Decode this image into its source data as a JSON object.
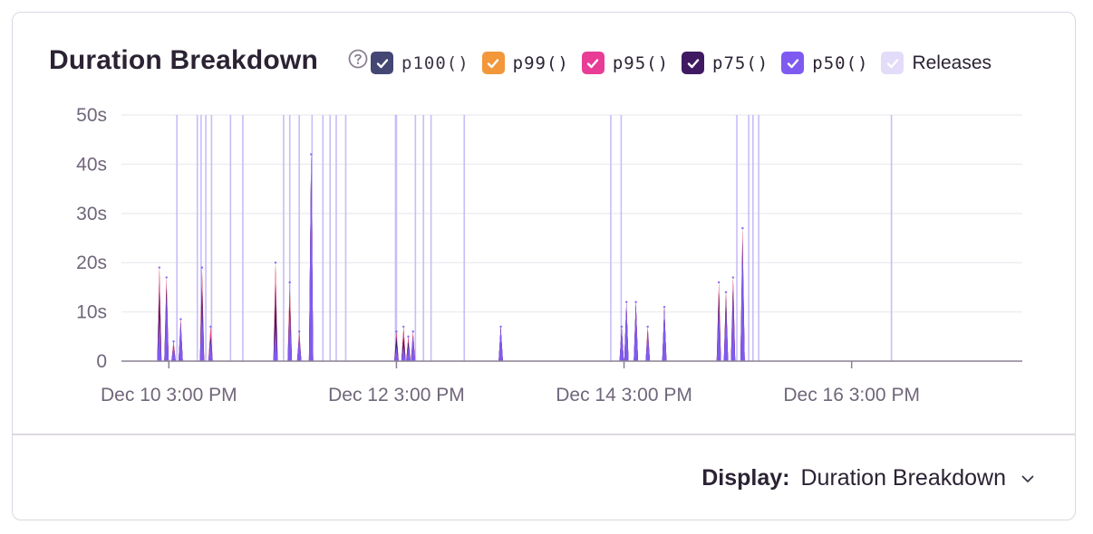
{
  "header": {
    "title": "Duration Breakdown"
  },
  "legend": [
    {
      "label": "p100()",
      "color": "#444674",
      "mono": true
    },
    {
      "label": "p99()",
      "color": "#f2973a",
      "mono": true
    },
    {
      "label": "p95()",
      "color": "#e93c96",
      "mono": true
    },
    {
      "label": "p75()",
      "color": "#3f1a63",
      "mono": true
    },
    {
      "label": "p50()",
      "color": "#7f5af0",
      "mono": true
    },
    {
      "label": "Releases",
      "color": "#e3dcf8",
      "mono": false
    }
  ],
  "footer": {
    "display_label": "Display:",
    "display_value": "Duration Breakdown"
  },
  "chart_data": {
    "type": "area",
    "y_unit": "s",
    "ylim": [
      0,
      50
    ],
    "y_ticks": [
      "0",
      "10s",
      "20s",
      "30s",
      "40s",
      "50s"
    ],
    "x_range_hours": [
      -10,
      180
    ],
    "x_ticks": [
      {
        "label": "Dec 10 3:00 PM",
        "hour": 0
      },
      {
        "label": "Dec 12 3:00 PM",
        "hour": 48
      },
      {
        "label": "Dec 14 3:00 PM",
        "hour": 96
      },
      {
        "label": "Dec 16 3:00 PM",
        "hour": 144
      }
    ],
    "grid": true,
    "legend_position": "top",
    "release_hours": [
      1.7,
      6,
      6.8,
      7.8,
      9,
      13,
      15.6,
      24.2,
      25.5,
      27.5,
      30.2,
      32.5,
      34,
      35.3,
      37.3,
      47.8,
      48,
      52,
      53.7,
      55.3,
      62.3,
      93.2,
      95.4,
      119.8,
      122.3,
      123.2,
      124.4,
      152.4
    ],
    "spikes": [
      {
        "hour": -2.0,
        "p100": 19,
        "p99": 19,
        "p95": 19,
        "p75": 14,
        "p50": 9
      },
      {
        "hour": -0.5,
        "p100": 17,
        "p99": 17,
        "p95": 17,
        "p75": 15,
        "p50": 13
      },
      {
        "hour": 1.0,
        "p100": 4,
        "p99": 4,
        "p95": 4,
        "p75": 3,
        "p50": 3
      },
      {
        "hour": 2.5,
        "p100": 8.5,
        "p99": 8.5,
        "p95": 8.5,
        "p75": 8,
        "p50": 8
      },
      {
        "hour": 7.0,
        "p100": 19,
        "p99": 19,
        "p95": 18,
        "p75": 15,
        "p50": 11
      },
      {
        "hour": 8.8,
        "p100": 7,
        "p99": 7,
        "p95": 7,
        "p75": 5,
        "p50": 4
      },
      {
        "hour": 22.5,
        "p100": 20,
        "p99": 20,
        "p95": 19,
        "p75": 14,
        "p50": 7
      },
      {
        "hour": 25.5,
        "p100": 16,
        "p99": 16,
        "p95": 15,
        "p75": 12,
        "p50": 10
      },
      {
        "hour": 27.5,
        "p100": 6,
        "p99": 6,
        "p95": 6,
        "p75": 5,
        "p50": 5
      },
      {
        "hour": 30.0,
        "p100": 42,
        "p99": 42,
        "p95": 42,
        "p75": 42,
        "p50": 42
      },
      {
        "hour": 48.0,
        "p100": 6,
        "p99": 6,
        "p95": 6,
        "p75": 5,
        "p50": 3
      },
      {
        "hour": 49.5,
        "p100": 7,
        "p99": 7,
        "p95": 7,
        "p75": 5,
        "p50": 3
      },
      {
        "hour": 50.5,
        "p100": 5,
        "p99": 5,
        "p95": 5,
        "p75": 4,
        "p50": 3
      },
      {
        "hour": 51.5,
        "p100": 6,
        "p99": 6,
        "p95": 6,
        "p75": 5,
        "p50": 5
      },
      {
        "hour": 70.0,
        "p100": 7,
        "p99": 7,
        "p95": 7,
        "p75": 7,
        "p50": 7
      },
      {
        "hour": 95.5,
        "p100": 7,
        "p99": 7,
        "p95": 7,
        "p75": 7,
        "p50": 7
      },
      {
        "hour": 96.5,
        "p100": 12,
        "p99": 12,
        "p95": 12,
        "p75": 12,
        "p50": 12
      },
      {
        "hour": 98.5,
        "p100": 12,
        "p99": 12,
        "p95": 12,
        "p75": 12,
        "p50": 12
      },
      {
        "hour": 101.0,
        "p100": 7,
        "p99": 7,
        "p95": 7,
        "p75": 6,
        "p50": 6
      },
      {
        "hour": 104.5,
        "p100": 11,
        "p99": 11,
        "p95": 11,
        "p75": 11,
        "p50": 11
      },
      {
        "hour": 116.0,
        "p100": 16,
        "p99": 16,
        "p95": 16,
        "p75": 14,
        "p50": 11
      },
      {
        "hour": 117.5,
        "p100": 14,
        "p99": 14,
        "p95": 14,
        "p75": 13,
        "p50": 11
      },
      {
        "hour": 119.0,
        "p100": 17,
        "p99": 17,
        "p95": 17,
        "p75": 15,
        "p50": 13
      },
      {
        "hour": 121.0,
        "p100": 27,
        "p99": 27,
        "p95": 27,
        "p75": 25,
        "p50": 24
      }
    ]
  }
}
